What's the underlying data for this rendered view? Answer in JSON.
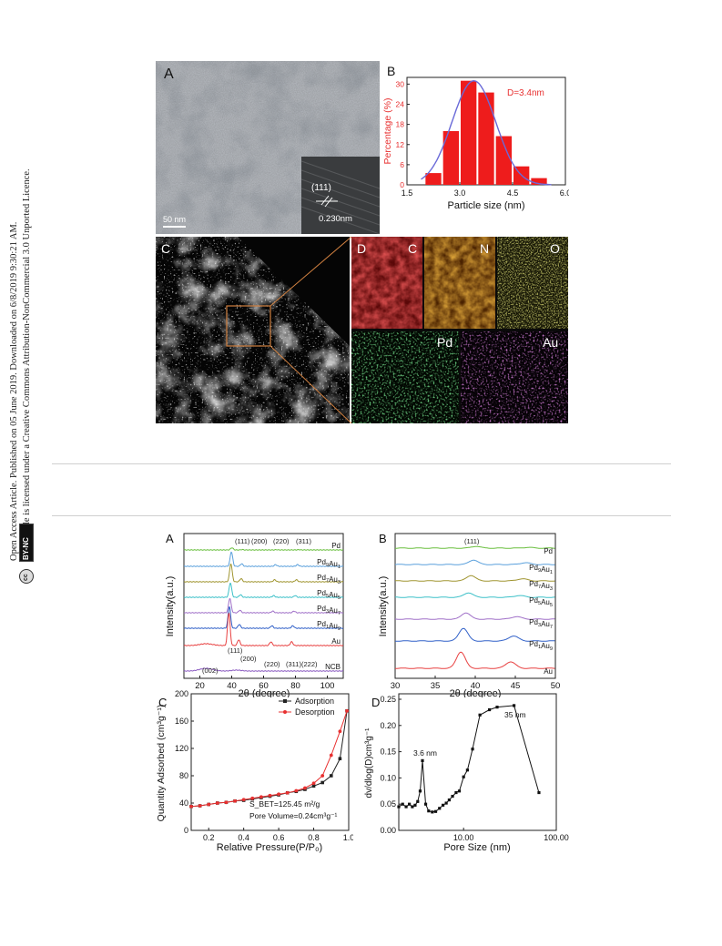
{
  "sidebar": {
    "line1": "Open Access Article. Published on 05 June 2019. Downloaded on 6/8/2019 9:30:21 AM.",
    "line2": "This article is licensed under a Creative Commons Attribution-NonCommercial 3.0 Unported Licence.",
    "badge_cc": "cc",
    "badge_text": "BY-NC"
  },
  "fig1": {
    "A": {
      "label": "A",
      "scale": "50 nm",
      "plane": "(111)",
      "spacing": "0.230nm"
    },
    "B": {
      "label": "B",
      "annotation": "D=3.4nm"
    },
    "C": {
      "label": "C"
    },
    "D": {
      "label": "D",
      "maps": [
        "C",
        "N",
        "O",
        "Pd",
        "Au"
      ]
    }
  },
  "fig2": {
    "A": {
      "label": "A",
      "series_labels": [
        "Pd",
        "Pd9Au1",
        "Pd7Au3",
        "Pd5Au5",
        "Pd3Au7",
        "Pd1Au9",
        "Au",
        "NCB"
      ],
      "peaks_top": [
        "(111)",
        "(200)",
        "(220)",
        "(311)"
      ],
      "peaks_au": [
        "(111)",
        "(200)",
        "(220)",
        "(311)",
        "(222)"
      ],
      "peak_ncb": "(002)"
    },
    "B": {
      "label": "B",
      "peak": "(111)",
      "series_labels": [
        "Pd",
        "Pd9Au1",
        "Pd7Au3",
        "Pd5Au5",
        "Pd3Au7",
        "Pd1Au9",
        "Au"
      ]
    },
    "C": {
      "label": "C",
      "bet": "S_BET=125.45 m²/g",
      "pore_volume": "Pore Volume=0.24cm³g⁻¹"
    },
    "D": {
      "label": "D",
      "ann1": "3.6 nm",
      "ann2": "35 nm"
    }
  },
  "chart_data": [
    {
      "type": "bar",
      "title": "",
      "xlabel": "Particle size (nm)",
      "ylabel": "Percentage (%)",
      "xlim": [
        1.5,
        6.0
      ],
      "ylim": [
        0,
        32
      ],
      "xticks": [
        "1.5",
        "3.0",
        "4.5",
        "6.0"
      ],
      "yticks": [
        "0",
        "6",
        "12",
        "18",
        "24",
        "30"
      ],
      "x": [
        2.25,
        2.75,
        3.25,
        3.75,
        4.25,
        4.75,
        5.25
      ],
      "values": [
        3.5,
        16,
        31,
        27.5,
        14.5,
        5.5,
        2
      ],
      "fit_curve": "gaussian",
      "color": "#ee1c1c",
      "fit_color": "#6a6ad8"
    },
    {
      "type": "line",
      "title": "",
      "xlabel": "2θ (degree)",
      "ylabel": "Intensity(a.u.)",
      "xlim": [
        10,
        110
      ],
      "xticks": [
        "20",
        "40",
        "60",
        "80",
        "100"
      ],
      "series": [
        {
          "name": "Pd",
          "color": "#6abf3f"
        },
        {
          "name": "Pd9Au1",
          "color": "#5aa0dc"
        },
        {
          "name": "Pd7Au3",
          "color": "#a09530"
        },
        {
          "name": "Pd5Au5",
          "color": "#3cc0c8"
        },
        {
          "name": "Pd3Au7",
          "color": "#a070c8"
        },
        {
          "name": "Pd1Au9",
          "color": "#3060c8"
        },
        {
          "name": "Au",
          "color": "#e84040"
        },
        {
          "name": "NCB",
          "color": "#8a5ac0"
        }
      ]
    },
    {
      "type": "line",
      "title": "",
      "xlabel": "2θ (degree)",
      "ylabel": "Intensity(a.u.)",
      "xlim": [
        30,
        50
      ],
      "xticks": [
        "30",
        "35",
        "40",
        "45",
        "50"
      ],
      "series": [
        {
          "name": "Pd",
          "color": "#6abf3f"
        },
        {
          "name": "Pd9Au1",
          "color": "#5aa0dc"
        },
        {
          "name": "Pd7Au3",
          "color": "#a09530"
        },
        {
          "name": "Pd5Au5",
          "color": "#3cc0c8"
        },
        {
          "name": "Pd3Au7",
          "color": "#a070c8"
        },
        {
          "name": "Pd1Au9",
          "color": "#3060c8"
        },
        {
          "name": "Au",
          "color": "#e84040"
        }
      ]
    },
    {
      "type": "line",
      "title": "",
      "xlabel": "Relative Pressure(P/P₀)",
      "ylabel": "Quantity Adsorbed (cm³g⁻¹)",
      "xlim": [
        0.1,
        1.0
      ],
      "ylim": [
        0,
        200
      ],
      "xticks": [
        "0.2",
        "0.4",
        "0.6",
        "0.8",
        "1.0"
      ],
      "yticks": [
        "0",
        "40",
        "80",
        "120",
        "160",
        "200"
      ],
      "series": [
        {
          "name": "Adsorption",
          "color": "#222222",
          "x": [
            0.1,
            0.15,
            0.2,
            0.25,
            0.3,
            0.35,
            0.4,
            0.45,
            0.5,
            0.55,
            0.6,
            0.65,
            0.7,
            0.75,
            0.8,
            0.85,
            0.9,
            0.95,
            0.99
          ],
          "y": [
            35,
            36,
            38,
            40,
            41,
            43,
            44,
            46,
            48,
            50,
            52,
            55,
            57,
            60,
            65,
            70,
            80,
            105,
            175
          ]
        },
        {
          "name": "Desorption",
          "color": "#e83030",
          "x": [
            0.99,
            0.95,
            0.9,
            0.85,
            0.8,
            0.75,
            0.7,
            0.65,
            0.6,
            0.55,
            0.5,
            0.45,
            0.4,
            0.35,
            0.3,
            0.25,
            0.2,
            0.15,
            0.1
          ],
          "y": [
            175,
            145,
            110,
            80,
            69,
            62,
            58,
            55,
            53,
            51,
            49,
            47,
            45,
            43,
            41,
            40,
            38,
            36,
            35
          ]
        }
      ]
    },
    {
      "type": "line",
      "title": "",
      "xlabel": "Pore Size (nm)",
      "ylabel": "dv/dlog(D)cm³g⁻¹",
      "xscale": "log",
      "xlim": [
        2,
        100
      ],
      "ylim": [
        0,
        0.25
      ],
      "xticks": [
        "10.00",
        "100.00"
      ],
      "yticks": [
        "0.00",
        "0.05",
        "0.10",
        "0.15",
        "0.20",
        "0.25"
      ],
      "series": [
        {
          "name": "",
          "color": "#111111",
          "x": [
            2.0,
            2.2,
            2.4,
            2.6,
            2.8,
            3.0,
            3.2,
            3.4,
            3.6,
            3.9,
            4.2,
            4.6,
            5.0,
            5.5,
            6.0,
            6.5,
            7.0,
            7.6,
            8.3,
            9.0,
            10.0,
            11.0,
            12.5,
            15.0,
            19.0,
            23.0,
            35.0,
            65.0
          ],
          "y": [
            0.045,
            0.05,
            0.045,
            0.05,
            0.045,
            0.048,
            0.055,
            0.075,
            0.133,
            0.05,
            0.037,
            0.035,
            0.036,
            0.042,
            0.048,
            0.052,
            0.058,
            0.065,
            0.072,
            0.075,
            0.102,
            0.115,
            0.155,
            0.22,
            0.23,
            0.235,
            0.238,
            0.072
          ]
        }
      ]
    }
  ]
}
